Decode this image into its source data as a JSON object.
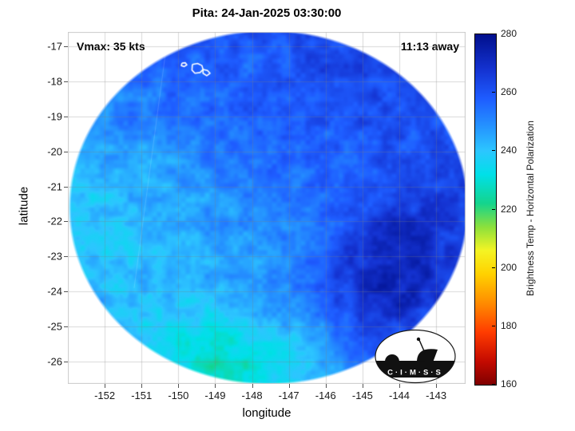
{
  "logo": {
    "text": "C·I·M·S·S"
  },
  "chart_data": {
    "type": "heatmap",
    "title": "Pita: 24-Jan-2025 03:30:00",
    "annotations": {
      "vmax": "Vmax: 35 kts",
      "eta": "11:13 away"
    },
    "xlabel": "longitude",
    "ylabel": "latitude",
    "xlim": [
      -153.0,
      -142.2
    ],
    "ylim": [
      -26.64,
      -16.59
    ],
    "xticks": [
      -152,
      -151,
      -150,
      -149,
      -148,
      -147,
      -146,
      -145,
      -144,
      -143
    ],
    "yticks": [
      -17,
      -18,
      -19,
      -20,
      -21,
      -22,
      -23,
      -24,
      -25,
      -26
    ],
    "grid": true,
    "colorbar": {
      "label": "Brightness Temp - Horizontal Polarization",
      "min": 160,
      "max": 280,
      "ticks": [
        160,
        180,
        200,
        220,
        240,
        260,
        280
      ],
      "stops": [
        [
          160,
          "#7f0000"
        ],
        [
          168,
          "#c40a00"
        ],
        [
          178,
          "#ff3c00"
        ],
        [
          188,
          "#ff8c00"
        ],
        [
          198,
          "#ffd200"
        ],
        [
          206,
          "#f4f424"
        ],
        [
          214,
          "#8ce03c"
        ],
        [
          222,
          "#14d48c"
        ],
        [
          232,
          "#00e0e8"
        ],
        [
          240,
          "#2cc6ff"
        ],
        [
          248,
          "#2596ff"
        ],
        [
          258,
          "#1e5cff"
        ],
        [
          268,
          "#1432d0"
        ],
        [
          280,
          "#000f8c"
        ]
      ]
    },
    "swath": {
      "center_lon": -147.55,
      "center_lat": -21.6,
      "radius_lon": 5.36,
      "radius_lat": 5.0
    },
    "swath_edge": [
      [
        -150.35,
        -17.2
      ],
      [
        -151.2,
        -23.9
      ]
    ],
    "field": {
      "units": "K",
      "lon_start": -153,
      "lon_step": 1,
      "lat_start": -16.5,
      "lat_step": -1,
      "values": [
        [
          257,
          257,
          258,
          258,
          259,
          260,
          261,
          262,
          262,
          261,
          260,
          259
        ],
        [
          254,
          255,
          256,
          257,
          257,
          258,
          260,
          262,
          263,
          262,
          261,
          260
        ],
        [
          250,
          252,
          253,
          255,
          256,
          257,
          259,
          261,
          262,
          262,
          261,
          260
        ],
        [
          246,
          247,
          249,
          252,
          255,
          256,
          257,
          258,
          260,
          261,
          261,
          260
        ],
        [
          242,
          243,
          245,
          248,
          252,
          254,
          255,
          256,
          258,
          261,
          262,
          261
        ],
        [
          239,
          240,
          242,
          245,
          248,
          250,
          252,
          255,
          260,
          265,
          264,
          262
        ],
        [
          238,
          239,
          241,
          244,
          246,
          248,
          250,
          256,
          266,
          272,
          268,
          263
        ],
        [
          241,
          241,
          242,
          244,
          245,
          247,
          250,
          258,
          270,
          274,
          270,
          262
        ],
        [
          244,
          243,
          240,
          238,
          240,
          244,
          248,
          256,
          266,
          270,
          264,
          258
        ],
        [
          246,
          244,
          238,
          232,
          229,
          233,
          240,
          248,
          256,
          260,
          256,
          252
        ],
        [
          248,
          245,
          240,
          232,
          226,
          229,
          236,
          244,
          250,
          254,
          252,
          250
        ]
      ]
    },
    "islands": [
      [
        [
          -149.62,
          -17.52
        ],
        [
          -149.48,
          -17.49
        ],
        [
          -149.36,
          -17.55
        ],
        [
          -149.33,
          -17.66
        ],
        [
          -149.41,
          -17.75
        ],
        [
          -149.55,
          -17.77
        ],
        [
          -149.63,
          -17.68
        ],
        [
          -149.62,
          -17.52
        ]
      ],
      [
        [
          -149.33,
          -17.66
        ],
        [
          -149.21,
          -17.69
        ],
        [
          -149.14,
          -17.77
        ],
        [
          -149.23,
          -17.84
        ],
        [
          -149.33,
          -17.77
        ],
        [
          -149.33,
          -17.66
        ]
      ],
      [
        [
          -149.9,
          -17.48
        ],
        [
          -149.81,
          -17.47
        ],
        [
          -149.77,
          -17.53
        ],
        [
          -149.84,
          -17.58
        ],
        [
          -149.92,
          -17.55
        ],
        [
          -149.9,
          -17.48
        ]
      ],
      [
        [
          -151.52,
          -16.7
        ],
        [
          -151.45,
          -16.72
        ],
        [
          -151.47,
          -16.78
        ],
        [
          -151.54,
          -16.76
        ],
        [
          -151.52,
          -16.7
        ]
      ]
    ]
  }
}
